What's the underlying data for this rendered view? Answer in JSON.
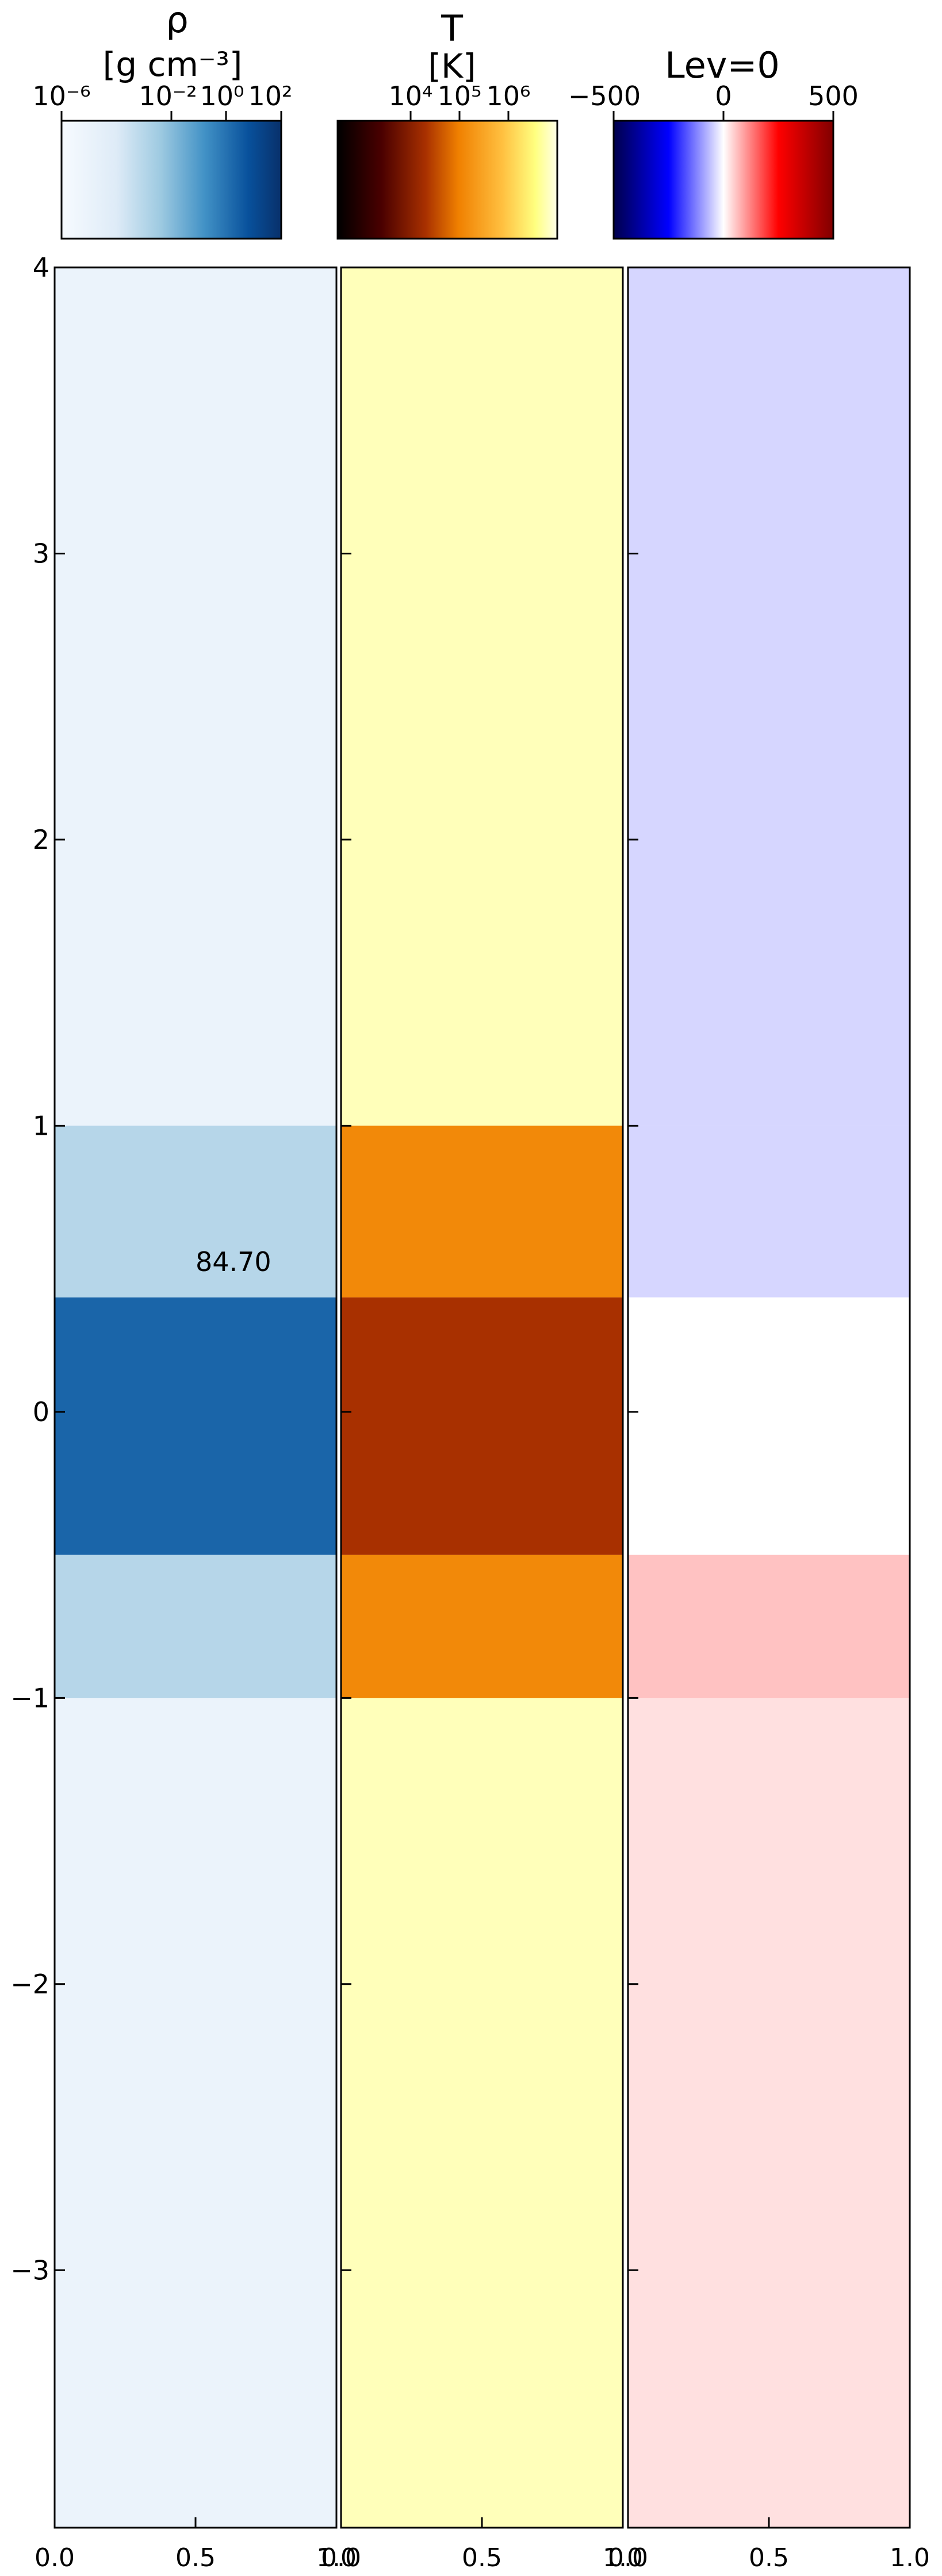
{
  "figure": {
    "panels": [
      {
        "id": "rho",
        "colorbar": {
          "title_lines": [
            "ρ",
            "[g cm⁻³]"
          ],
          "tick_labels": [
            "10⁻⁶",
            "10⁻²",
            "10⁰",
            "10²"
          ],
          "log_range": [
            -6,
            2
          ],
          "colormap": "Blues"
        },
        "annotation": "84.70"
      },
      {
        "id": "T",
        "colorbar": {
          "title_lines": [
            "T",
            "[K]"
          ],
          "tick_labels": [
            "10⁴",
            "10⁵",
            "10⁶"
          ],
          "log_range": [
            2.5,
            7
          ],
          "colormap": "afmhot"
        }
      },
      {
        "id": "Lev",
        "colorbar": {
          "title_lines": [
            "Lev=0"
          ],
          "tick_labels": [
            "−500",
            "0",
            "500"
          ],
          "range": [
            -500,
            500
          ],
          "colormap": "seismic"
        }
      }
    ]
  },
  "chart_data": {
    "type": "heatmap",
    "y_ticks": [
      4,
      3,
      2,
      1,
      0,
      -1,
      -2,
      -3
    ],
    "y_tick_labels": [
      "4",
      "3",
      "2",
      "1",
      "0",
      "−1",
      "−2",
      "−3"
    ],
    "x_ticks": [
      0.0,
      0.5,
      1.0
    ],
    "x_tick_labels": [
      "0.0",
      "0.5",
      "1.0"
    ],
    "ylim": [
      -3.9,
      4.0
    ],
    "xlim": [
      0.0,
      1.0
    ],
    "layers": [
      {
        "y_range": [
          1.0,
          4.0
        ],
        "rho_log10": -5.0,
        "T_log10": 6.8,
        "vel": -40
      },
      {
        "y_range": [
          0.4,
          1.0
        ],
        "rho_log10": -3.0,
        "T_log10": 5.1,
        "vel": -40
      },
      {
        "y_range": [
          -0.5,
          0.4
        ],
        "rho_log10": 0.3,
        "T_log10": 4.3,
        "vel": 0
      },
      {
        "y_range": [
          -1.0,
          -0.5
        ],
        "rho_log10": -3.0,
        "T_log10": 5.1,
        "vel": 60
      },
      {
        "y_range": [
          -3.9,
          -1.0
        ],
        "rho_log10": -5.0,
        "T_log10": 6.8,
        "vel": 30
      }
    ]
  }
}
